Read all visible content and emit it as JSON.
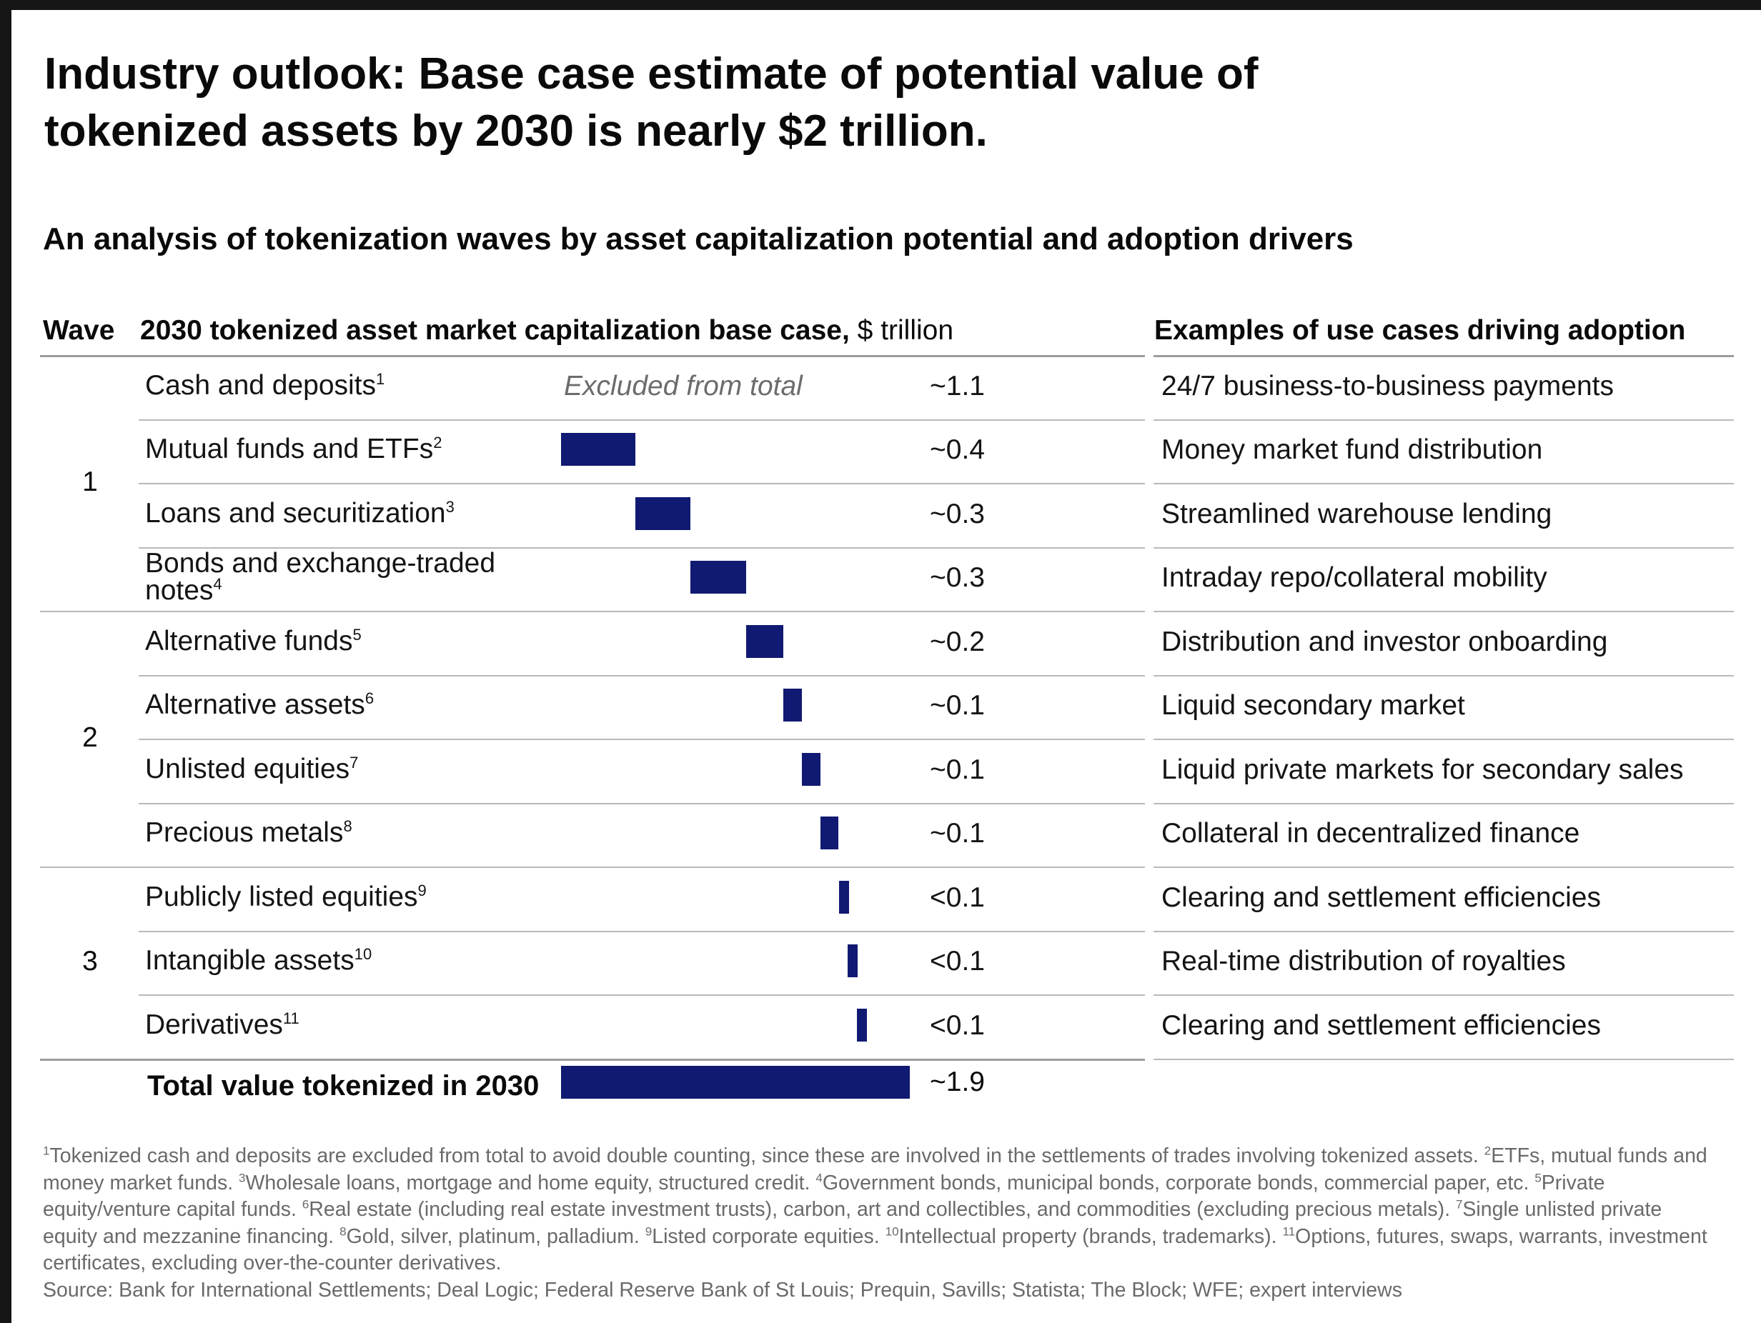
{
  "title": "Industry outlook: Base case estimate of potential value of tokenized assets by 2030 is nearly $2 trillion.",
  "subtitle": "An analysis of tokenization waves by asset capitalization potential and adoption drivers",
  "headers": {
    "wave": "Wave",
    "chart_bold": "2030 tokenized asset market capitalization base case,",
    "chart_unit": " $ trillion",
    "use_cases": "Examples of use cases driving adoption"
  },
  "waves": [
    "1",
    "2",
    "3"
  ],
  "excluded_note": "Excluded from total",
  "chart_data": {
    "type": "bar",
    "orientation": "horizontal waterfall",
    "title": "2030 tokenized asset market capitalization base case, $ trillion",
    "unit": "$ trillion",
    "categories": [
      "Cash and deposits",
      "Mutual funds and ETFs",
      "Loans and securitization",
      "Bonds and exchange-traded notes",
      "Alternative funds",
      "Alternative assets",
      "Unlisted equities",
      "Precious metals",
      "Publicly listed equities",
      "Intangible assets",
      "Derivatives"
    ],
    "values": [
      1.1,
      0.4,
      0.3,
      0.3,
      0.2,
      0.1,
      0.1,
      0.1,
      0.05,
      0.05,
      0.05
    ],
    "value_labels": [
      "~1.1",
      "~0.4",
      "~0.3",
      "~0.3",
      "~0.2",
      "~0.1",
      "~0.1",
      "~0.1",
      "<0.1",
      "<0.1",
      "<0.1"
    ],
    "excluded_from_total": [
      "Cash and deposits"
    ],
    "total": {
      "label": "Total value tokenized in 2030",
      "value": 1.9,
      "value_label": "~1.9"
    },
    "xlim": [
      0,
      1.9
    ],
    "color": "#101a72"
  },
  "rows": [
    {
      "label": "Cash and deposits",
      "note": "1",
      "wave": "1",
      "use_case": "24/7 business-to-business payments"
    },
    {
      "label": "Mutual funds and ETFs",
      "note": "2",
      "wave": "1",
      "use_case": "Money market fund distribution"
    },
    {
      "label": "Loans and securitization",
      "note": "3",
      "wave": "1",
      "use_case": "Streamlined warehouse lending"
    },
    {
      "label": "Bonds and exchange-traded notes",
      "note": "4",
      "wave": "1",
      "use_case": "Intraday repo/collateral mobility"
    },
    {
      "label": "Alternative funds",
      "note": "5",
      "wave": "2",
      "use_case": "Distribution and investor onboarding"
    },
    {
      "label": "Alternative assets",
      "note": "6",
      "wave": "2",
      "use_case": "Liquid secondary market"
    },
    {
      "label": "Unlisted equities",
      "note": "7",
      "wave": "2",
      "use_case": "Liquid private markets for secondary sales"
    },
    {
      "label": "Precious metals",
      "note": "8",
      "wave": "2",
      "use_case": "Collateral in decentralized finance"
    },
    {
      "label": "Publicly listed equities",
      "note": "9",
      "wave": "3",
      "use_case": "Clearing and settlement efficiencies"
    },
    {
      "label": "Intangible assets",
      "note": "10",
      "wave": "3",
      "use_case": "Real-time distribution of royalties"
    },
    {
      "label": "Derivatives",
      "note": "11",
      "wave": "3",
      "use_case": "Clearing and settlement efficiencies"
    }
  ],
  "footnotes": [
    {
      "n": "1",
      "text": "Tokenized cash and deposits are excluded from total to avoid double counting, since these are involved in the settlements of trades involving tokenized assets."
    },
    {
      "n": "2",
      "text": "ETFs, mutual funds and money market funds."
    },
    {
      "n": "3",
      "text": "Wholesale loans, mortgage and home equity, structured credit."
    },
    {
      "n": "4",
      "text": "Government bonds, municipal bonds, corporate bonds, commercial paper, etc."
    },
    {
      "n": "5",
      "text": "Private equity/venture capital funds."
    },
    {
      "n": "6",
      "text": "Real estate (including real estate investment trusts), carbon, art and collectibles, and commodities (excluding precious metals)."
    },
    {
      "n": "7",
      "text": "Single unlisted private equity and mezzanine financing."
    },
    {
      "n": "8",
      "text": "Gold, silver, platinum, palladium."
    },
    {
      "n": "9",
      "text": "Listed corporate equities."
    },
    {
      "n": "10",
      "text": "Intellectual property (brands, trademarks)."
    },
    {
      "n": "11",
      "text": "Options, futures, swaps, warrants, investment certificates, excluding over-the-counter derivatives."
    }
  ],
  "source": "Source: Bank for International Settlements; Deal Logic; Federal Reserve Bank of St Louis; Prequin, Savills; Statista; The Block; WFE; expert interviews"
}
